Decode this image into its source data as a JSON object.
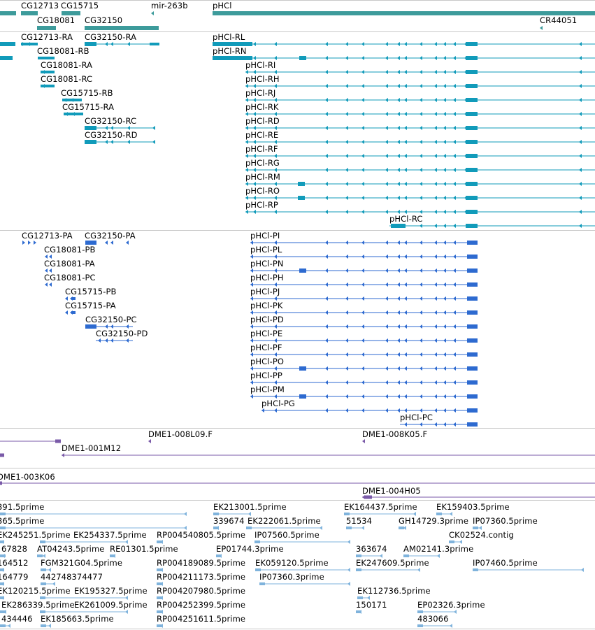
{
  "colors": {
    "gene": "#3d9b9b",
    "mrna": "#119bba",
    "protein": "#2d6ad0",
    "clone": "#7a5aa8",
    "est": "#7fb3dc",
    "divider": "#c8c8c8"
  },
  "tracks": {
    "genes": {
      "items": [
        {
          "label": "CG12713"
        },
        {
          "label": "CG15715"
        },
        {
          "label": "mir-263b"
        },
        {
          "label": "pHCl"
        },
        {
          "label": "CG18081"
        },
        {
          "label": "CG32150"
        },
        {
          "label": "CR44051"
        }
      ]
    },
    "transcripts": {
      "items": [
        {
          "label": "CG12713-RA"
        },
        {
          "label": "CG32150-RA"
        },
        {
          "label": "pHCl-RL"
        },
        {
          "label": "CG18081-RB"
        },
        {
          "label": "pHCl-RN"
        },
        {
          "label": "CG18081-RA"
        },
        {
          "label": "pHCl-RI"
        },
        {
          "label": "CG18081-RC"
        },
        {
          "label": "pHCl-RH"
        },
        {
          "label": "CG15715-RB"
        },
        {
          "label": "pHCl-RJ"
        },
        {
          "label": "CG15715-RA"
        },
        {
          "label": "pHCl-RK"
        },
        {
          "label": "CG32150-RC"
        },
        {
          "label": "pHCl-RD"
        },
        {
          "label": "CG32150-RD"
        },
        {
          "label": "pHCl-RE"
        },
        {
          "label": "pHCl-RF"
        },
        {
          "label": "pHCl-RG"
        },
        {
          "label": "pHCl-RM"
        },
        {
          "label": "pHCl-RO"
        },
        {
          "label": "pHCl-RP"
        },
        {
          "label": "pHCl-RC"
        }
      ]
    },
    "proteins": {
      "items": [
        {
          "label": "CG12713-PA"
        },
        {
          "label": "CG32150-PA"
        },
        {
          "label": "pHCl-PI"
        },
        {
          "label": "CG18081-PB"
        },
        {
          "label": "pHCl-PL"
        },
        {
          "label": "CG18081-PA"
        },
        {
          "label": "pHCl-PN"
        },
        {
          "label": "CG18081-PC"
        },
        {
          "label": "pHCl-PH"
        },
        {
          "label": "CG15715-PB"
        },
        {
          "label": "pHCl-PJ"
        },
        {
          "label": "CG15715-PA"
        },
        {
          "label": "pHCl-PK"
        },
        {
          "label": "CG32150-PC"
        },
        {
          "label": "pHCl-PD"
        },
        {
          "label": "CG32150-PD"
        },
        {
          "label": "pHCl-PE"
        },
        {
          "label": "pHCl-PF"
        },
        {
          "label": "pHCl-PO"
        },
        {
          "label": "pHCl-PP"
        },
        {
          "label": "pHCl-PM"
        },
        {
          "label": "pHCl-PG"
        },
        {
          "label": "pHCl-PC"
        }
      ]
    },
    "clones": {
      "items": [
        {
          "label": "DME1-008L09.F"
        },
        {
          "label": "DME1-008K05.F"
        },
        {
          "label": "DME1-001M12"
        },
        {
          "label": "DME1-003K06"
        },
        {
          "label": "DME1-004H05"
        }
      ]
    },
    "ests": {
      "items": [
        {
          "label": "391.5prime"
        },
        {
          "label": "EK213001.5prime"
        },
        {
          "label": "EK164437.5prime"
        },
        {
          "label": "EK159403.5prime"
        },
        {
          "label": "365.5prime"
        },
        {
          "label": "339674"
        },
        {
          "label": "EK222061.5prime"
        },
        {
          "label": "51534"
        },
        {
          "label": "GH14729.3prime"
        },
        {
          "label": "IP07360.5prime"
        },
        {
          "label": "EK245251.5prime"
        },
        {
          "label": "EK254337.5prime"
        },
        {
          "label": "RP004540805.5prime"
        },
        {
          "label": "IP07560.5prime"
        },
        {
          "label": "CK02524.contig"
        },
        {
          "label": "67828"
        },
        {
          "label": "AT04243.5prime"
        },
        {
          "label": "RE01301.5prime"
        },
        {
          "label": "EP01744.3prime"
        },
        {
          "label": "363674"
        },
        {
          "label": "AM02141.3prime"
        },
        {
          "label": "164512"
        },
        {
          "label": "FGM321G04.5prime"
        },
        {
          "label": "RP004189089.5prime"
        },
        {
          "label": "EK059120.5prime"
        },
        {
          "label": "EK247609.5prime"
        },
        {
          "label": "IP07460.5prime"
        },
        {
          "label": "164779"
        },
        {
          "label": "442748374477"
        },
        {
          "label": "RP004211173.5prime"
        },
        {
          "label": "IP07360.3prime"
        },
        {
          "label": "EK120215.5prime"
        },
        {
          "label": "EK195327.5prime"
        },
        {
          "label": "RP004207980.5prime"
        },
        {
          "label": "EK112736.5prime"
        },
        {
          "label": "EK286339.5prime"
        },
        {
          "label": "EK261009.5prime"
        },
        {
          "label": "RP004252399.5prime"
        },
        {
          "label": "150171"
        },
        {
          "label": "EP02326.3prime"
        },
        {
          "label": "434446"
        },
        {
          "label": "EK185663.5prime"
        },
        {
          "label": "RP004251611.5prime"
        },
        {
          "label": "483066"
        }
      ]
    }
  }
}
